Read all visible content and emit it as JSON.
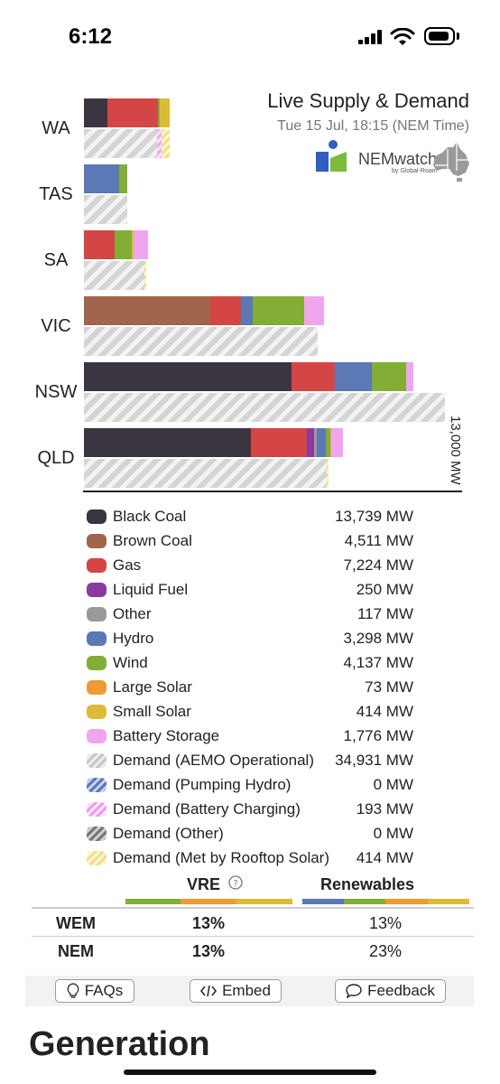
{
  "status_bar": {
    "time": "6:12"
  },
  "header": {
    "title": "Live Supply & Demand",
    "date": "Tue 15 Jul, 18:15 (NEM Time)",
    "logo_text": "NEMwatch",
    "logo_sub": "by Global-Roam"
  },
  "colors": {
    "black_coal": "#3a3540",
    "brown_coal": "#a0654a",
    "gas": "#d44545",
    "liquid_fuel": "#8a3a9c",
    "other": "#9a9a9a",
    "hydro": "#5a79b5",
    "wind": "#82ad36",
    "large_solar": "#ef9a32",
    "small_solar": "#dcbc36",
    "battery_storage": "#f0a6ef"
  },
  "chart_data": {
    "type": "bar",
    "title": "Live Supply & Demand",
    "axis_max_label": "13,000 MW",
    "axis_max": 13000,
    "categories": [
      "WA",
      "TAS",
      "SA",
      "VIC",
      "NSW",
      "QLD"
    ],
    "supply": {
      "WA": {
        "black_coal": 850,
        "gas": 1780,
        "wind": 60,
        "small_solar": 380
      },
      "TAS": {
        "hydro": 1250,
        "wind": 300
      },
      "SA": {
        "gas": 1080,
        "wind": 640,
        "small_solar": 50,
        "battery_storage": 500
      },
      "VIC": {
        "brown_coal": 4511,
        "gas": 1080,
        "hydro": 420,
        "wind": 1840,
        "battery_storage": 700
      },
      "NSW": {
        "black_coal": 7400,
        "gas": 1540,
        "hydro": 1320,
        "wind": 1230,
        "battery_storage": 240
      },
      "QLD": {
        "black_coal": 5940,
        "gas": 2000,
        "liquid_fuel": 250,
        "other": 117,
        "hydro": 308,
        "wind": 180,
        "small_solar": 20,
        "battery_storage": 420
      }
    },
    "demand": {
      "WA": {
        "operational": 2620,
        "battery_charging": 150,
        "rooftop": 300
      },
      "TAS": {
        "operational": 1550
      },
      "SA": {
        "operational": 2150,
        "rooftop": 60
      },
      "VIC": {
        "operational": 8350
      },
      "NSW": {
        "operational": 12860
      },
      "QLD": {
        "operational": 8650,
        "rooftop": 60
      }
    }
  },
  "legend": [
    {
      "key": "black_coal",
      "name": "Black Coal",
      "value": "13,739 MW",
      "style": "solid"
    },
    {
      "key": "brown_coal",
      "name": "Brown Coal",
      "value": "4,511 MW",
      "style": "solid"
    },
    {
      "key": "gas",
      "name": "Gas",
      "value": "7,224 MW",
      "style": "solid"
    },
    {
      "key": "liquid_fuel",
      "name": "Liquid Fuel",
      "value": "250 MW",
      "style": "solid"
    },
    {
      "key": "other",
      "name": "Other",
      "value": "117 MW",
      "style": "solid"
    },
    {
      "key": "hydro",
      "name": "Hydro",
      "value": "3,298 MW",
      "style": "solid"
    },
    {
      "key": "wind",
      "name": "Wind",
      "value": "4,137 MW",
      "style": "solid"
    },
    {
      "key": "large_solar",
      "name": "Large Solar",
      "value": "73 MW",
      "style": "solid"
    },
    {
      "key": "small_solar",
      "name": "Small Solar",
      "value": "414 MW",
      "style": "solid"
    },
    {
      "key": "battery_storage",
      "name": "Battery Storage",
      "value": "1,776 MW",
      "style": "solid"
    },
    {
      "key": "demand_operational",
      "name": "Demand (AEMO Operational)",
      "value": "34,931 MW",
      "style": "hatch-grey"
    },
    {
      "key": "demand_pumping",
      "name": "Demand (Pumping Hydro)",
      "value": "0 MW",
      "style": "hatch-blue"
    },
    {
      "key": "demand_battery",
      "name": "Demand (Battery Charging)",
      "value": "193 MW",
      "style": "hatch-pink"
    },
    {
      "key": "demand_other",
      "name": "Demand (Other)",
      "value": "0 MW",
      "style": "hatch-dark"
    },
    {
      "key": "demand_rooftop",
      "name": "Demand (Met by Rooftop Solar)",
      "value": "414 MW",
      "style": "hatch-yellow"
    }
  ],
  "vre_table": {
    "col_vre": "VRE",
    "col_renewables": "Renewables",
    "rows": [
      {
        "market": "WEM",
        "vre": "13%",
        "renewables": "13%"
      },
      {
        "market": "NEM",
        "vre": "13%",
        "renewables": "23%"
      }
    ]
  },
  "buttons": {
    "faqs": "FAQs",
    "embed": "Embed",
    "feedback": "Feedback"
  },
  "section_title": "Generation"
}
